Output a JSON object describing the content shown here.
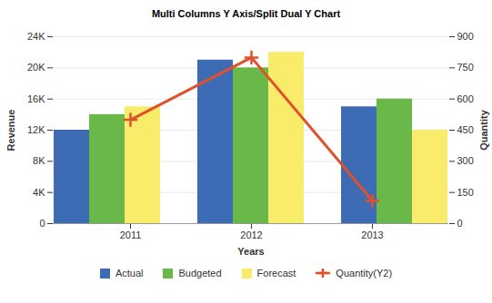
{
  "chart_data": {
    "type": "bar",
    "title": "Multi Columns Y Axis/Split Dual Y Chart",
    "x_label": "Years",
    "y_label": "Revenue",
    "y2_label": "Quantity",
    "categories": [
      "2011",
      "2012",
      "2013"
    ],
    "series": [
      {
        "name": "Actual",
        "color": "#3d6cb5",
        "values": [
          12000,
          21000,
          15000
        ]
      },
      {
        "name": "Budgeted",
        "color": "#6ab84a",
        "values": [
          14000,
          20000,
          16000
        ]
      },
      {
        "name": "Forecast",
        "color": "#f8ec6a",
        "values": [
          15000,
          22000,
          12000
        ]
      },
      {
        "name": "Quantity(Y2)",
        "type": "line",
        "axis": "y2",
        "color": "#e0502a",
        "marker": "plus",
        "values": [
          500,
          800,
          110
        ]
      }
    ],
    "ylim": [
      0,
      24000
    ],
    "yticks": [
      0,
      {
        "value": 4000,
        "label": "4K"
      },
      {
        "value": 8000,
        "label": "8K"
      },
      {
        "value": 12000,
        "label": "12K"
      },
      {
        "value": 16000,
        "label": "16K"
      },
      {
        "value": 20000,
        "label": "20K"
      },
      {
        "value": 24000,
        "label": "24K"
      }
    ],
    "y2lim": [
      0,
      900
    ],
    "y2ticks": [
      0,
      150,
      300,
      450,
      600,
      750,
      900
    ],
    "grid": true,
    "legend": "bottom"
  }
}
